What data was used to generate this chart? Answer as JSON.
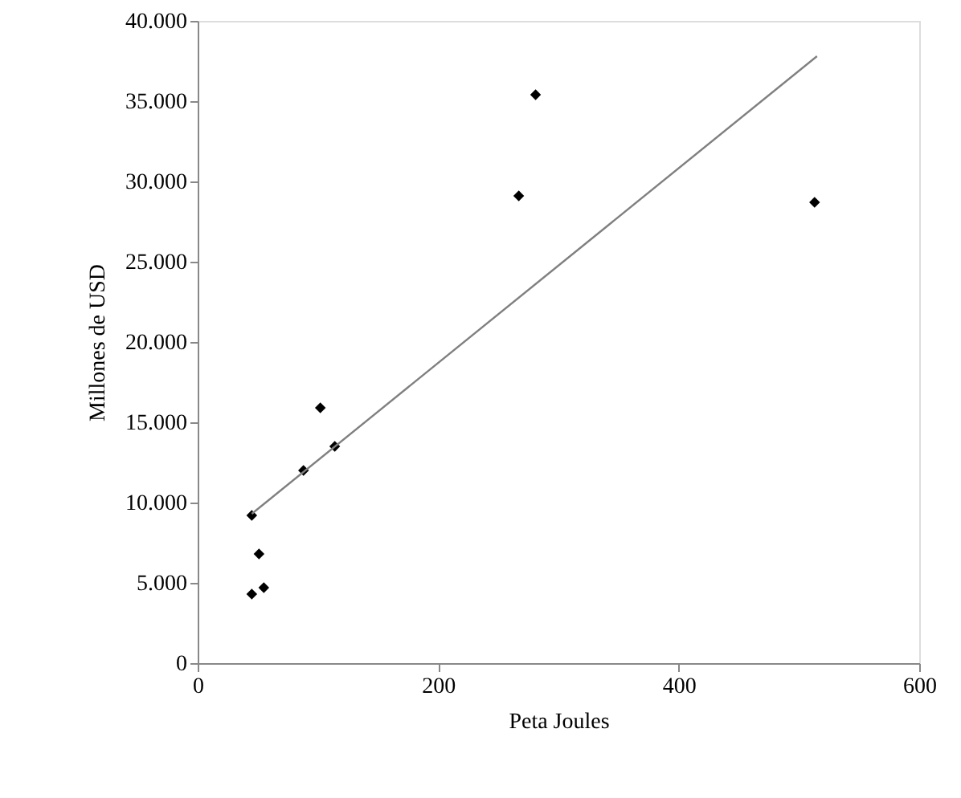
{
  "chart_data": {
    "type": "scatter",
    "xlabel": "Peta Joules",
    "ylabel": "Millones de USD",
    "xlim": [
      0,
      600
    ],
    "xticks": [
      0,
      200,
      400,
      600
    ],
    "ylim": [
      0,
      40000
    ],
    "yticks": [
      {
        "value": 0,
        "label": "0"
      },
      {
        "value": 5000,
        "label": "5.000"
      },
      {
        "value": 10000,
        "label": "10.000"
      },
      {
        "value": 15000,
        "label": "15.000"
      },
      {
        "value": 20000,
        "label": "20.000"
      },
      {
        "value": 25000,
        "label": "25.000"
      },
      {
        "value": 30000,
        "label": "30.000"
      },
      {
        "value": 35000,
        "label": "35.000"
      },
      {
        "value": 40000,
        "label": "40.000"
      }
    ],
    "grid": false,
    "legend": false,
    "series": [
      {
        "type": "scatter",
        "color": "#000000",
        "marker": "diamond",
        "x": [
          45,
          55,
          51,
          45,
          88,
          114,
          102,
          267,
          281,
          513
        ],
        "values": [
          4300,
          4700,
          6800,
          9200,
          12000,
          13500,
          15900,
          29100,
          35400,
          28700
        ]
      },
      {
        "type": "line",
        "color": "#808080",
        "marker": "none",
        "line_style": "solid",
        "x": [
          45,
          515
        ],
        "values": [
          9300,
          37800
        ]
      }
    ]
  }
}
